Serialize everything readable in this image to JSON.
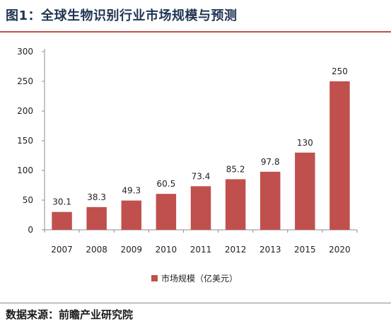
{
  "figure": {
    "title": "图1：全球生物识别行业市场规模与预测",
    "source": "数据来源：前瞻产业研究院"
  },
  "colors": {
    "bar": "#c0504d",
    "title_rule": "#c0504d",
    "axis": "#8c8c8c",
    "title_text": "#1f3552"
  },
  "chart_data": {
    "type": "bar",
    "categories": [
      "2007",
      "2008",
      "2009",
      "2010",
      "2011",
      "2012",
      "2013",
      "2015",
      "2020"
    ],
    "series": [
      {
        "name": "市场规模（亿美元）",
        "values": [
          30.1,
          38.3,
          49.3,
          60.5,
          73.4,
          85.2,
          97.8,
          130,
          250
        ],
        "labels": [
          "30.1",
          "38.3",
          "49.3",
          "60.5",
          "73.4",
          "85.2",
          "97.8",
          "130",
          "250"
        ]
      }
    ],
    "ylim": [
      0,
      300
    ],
    "yticks": [
      0,
      50,
      100,
      150,
      200,
      250,
      300
    ],
    "grid": false,
    "legend_position": "bottom-center",
    "xlabel": "",
    "ylabel": ""
  }
}
